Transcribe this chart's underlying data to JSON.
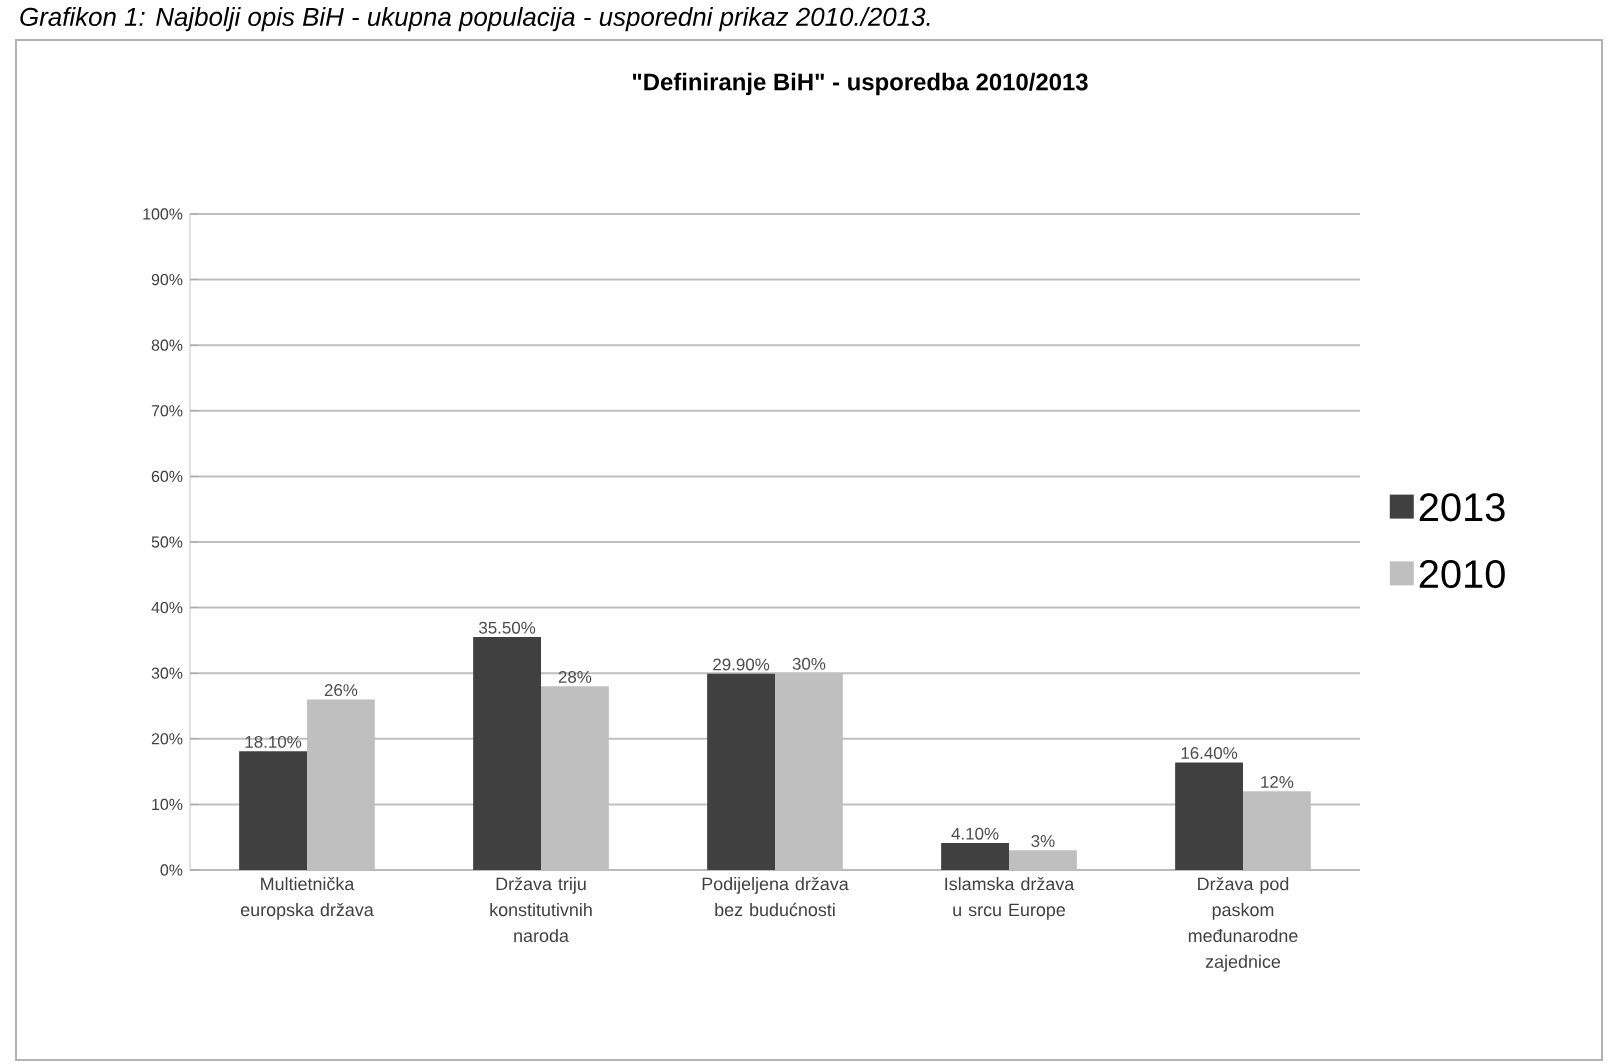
{
  "chart_data": {
    "type": "bar",
    "title": "\"Definiranje BiH\" - usporedba 2010/2013",
    "annotations": [
      "Grafikon 1: Najbolji opis BiH - ukupna populacija - usporedni prikaz 2010./2013."
    ],
    "categories": [
      "Multietnička europska država",
      "Država triju konstitutivnih naroda",
      "Podijeljena država bez budućnosti",
      "Islamska država u srcu Europe",
      "Država pod paskom međunarodne zajednice"
    ],
    "series": [
      {
        "name": "2013",
        "color": "#404040",
        "values": [
          18.1,
          35.5,
          29.9,
          4.1,
          16.4
        ],
        "value_labels": [
          "18.10%",
          "35.50%",
          "29.90%",
          "4.10%",
          "16.40%"
        ]
      },
      {
        "name": "2010",
        "color": "#bfbfbf",
        "values": [
          26,
          28,
          30,
          3,
          12
        ],
        "value_labels": [
          "26%",
          "28%",
          "30%",
          "3%",
          "12%"
        ]
      }
    ],
    "ylim": [
      0,
      100
    ],
    "yticks": [
      {
        "value": 0,
        "label": "0%"
      },
      {
        "value": 10,
        "label": "10%"
      },
      {
        "value": 20,
        "label": "20%"
      },
      {
        "value": 30,
        "label": "30%"
      },
      {
        "value": 40,
        "label": "40%"
      },
      {
        "value": 50,
        "label": "50%"
      },
      {
        "value": 60,
        "label": "60%"
      },
      {
        "value": 70,
        "label": "70%"
      },
      {
        "value": 80,
        "label": "80%"
      },
      {
        "value": 90,
        "label": "90%"
      },
      {
        "value": 100,
        "label": "100%"
      }
    ],
    "grid": "y",
    "legend": "right"
  }
}
